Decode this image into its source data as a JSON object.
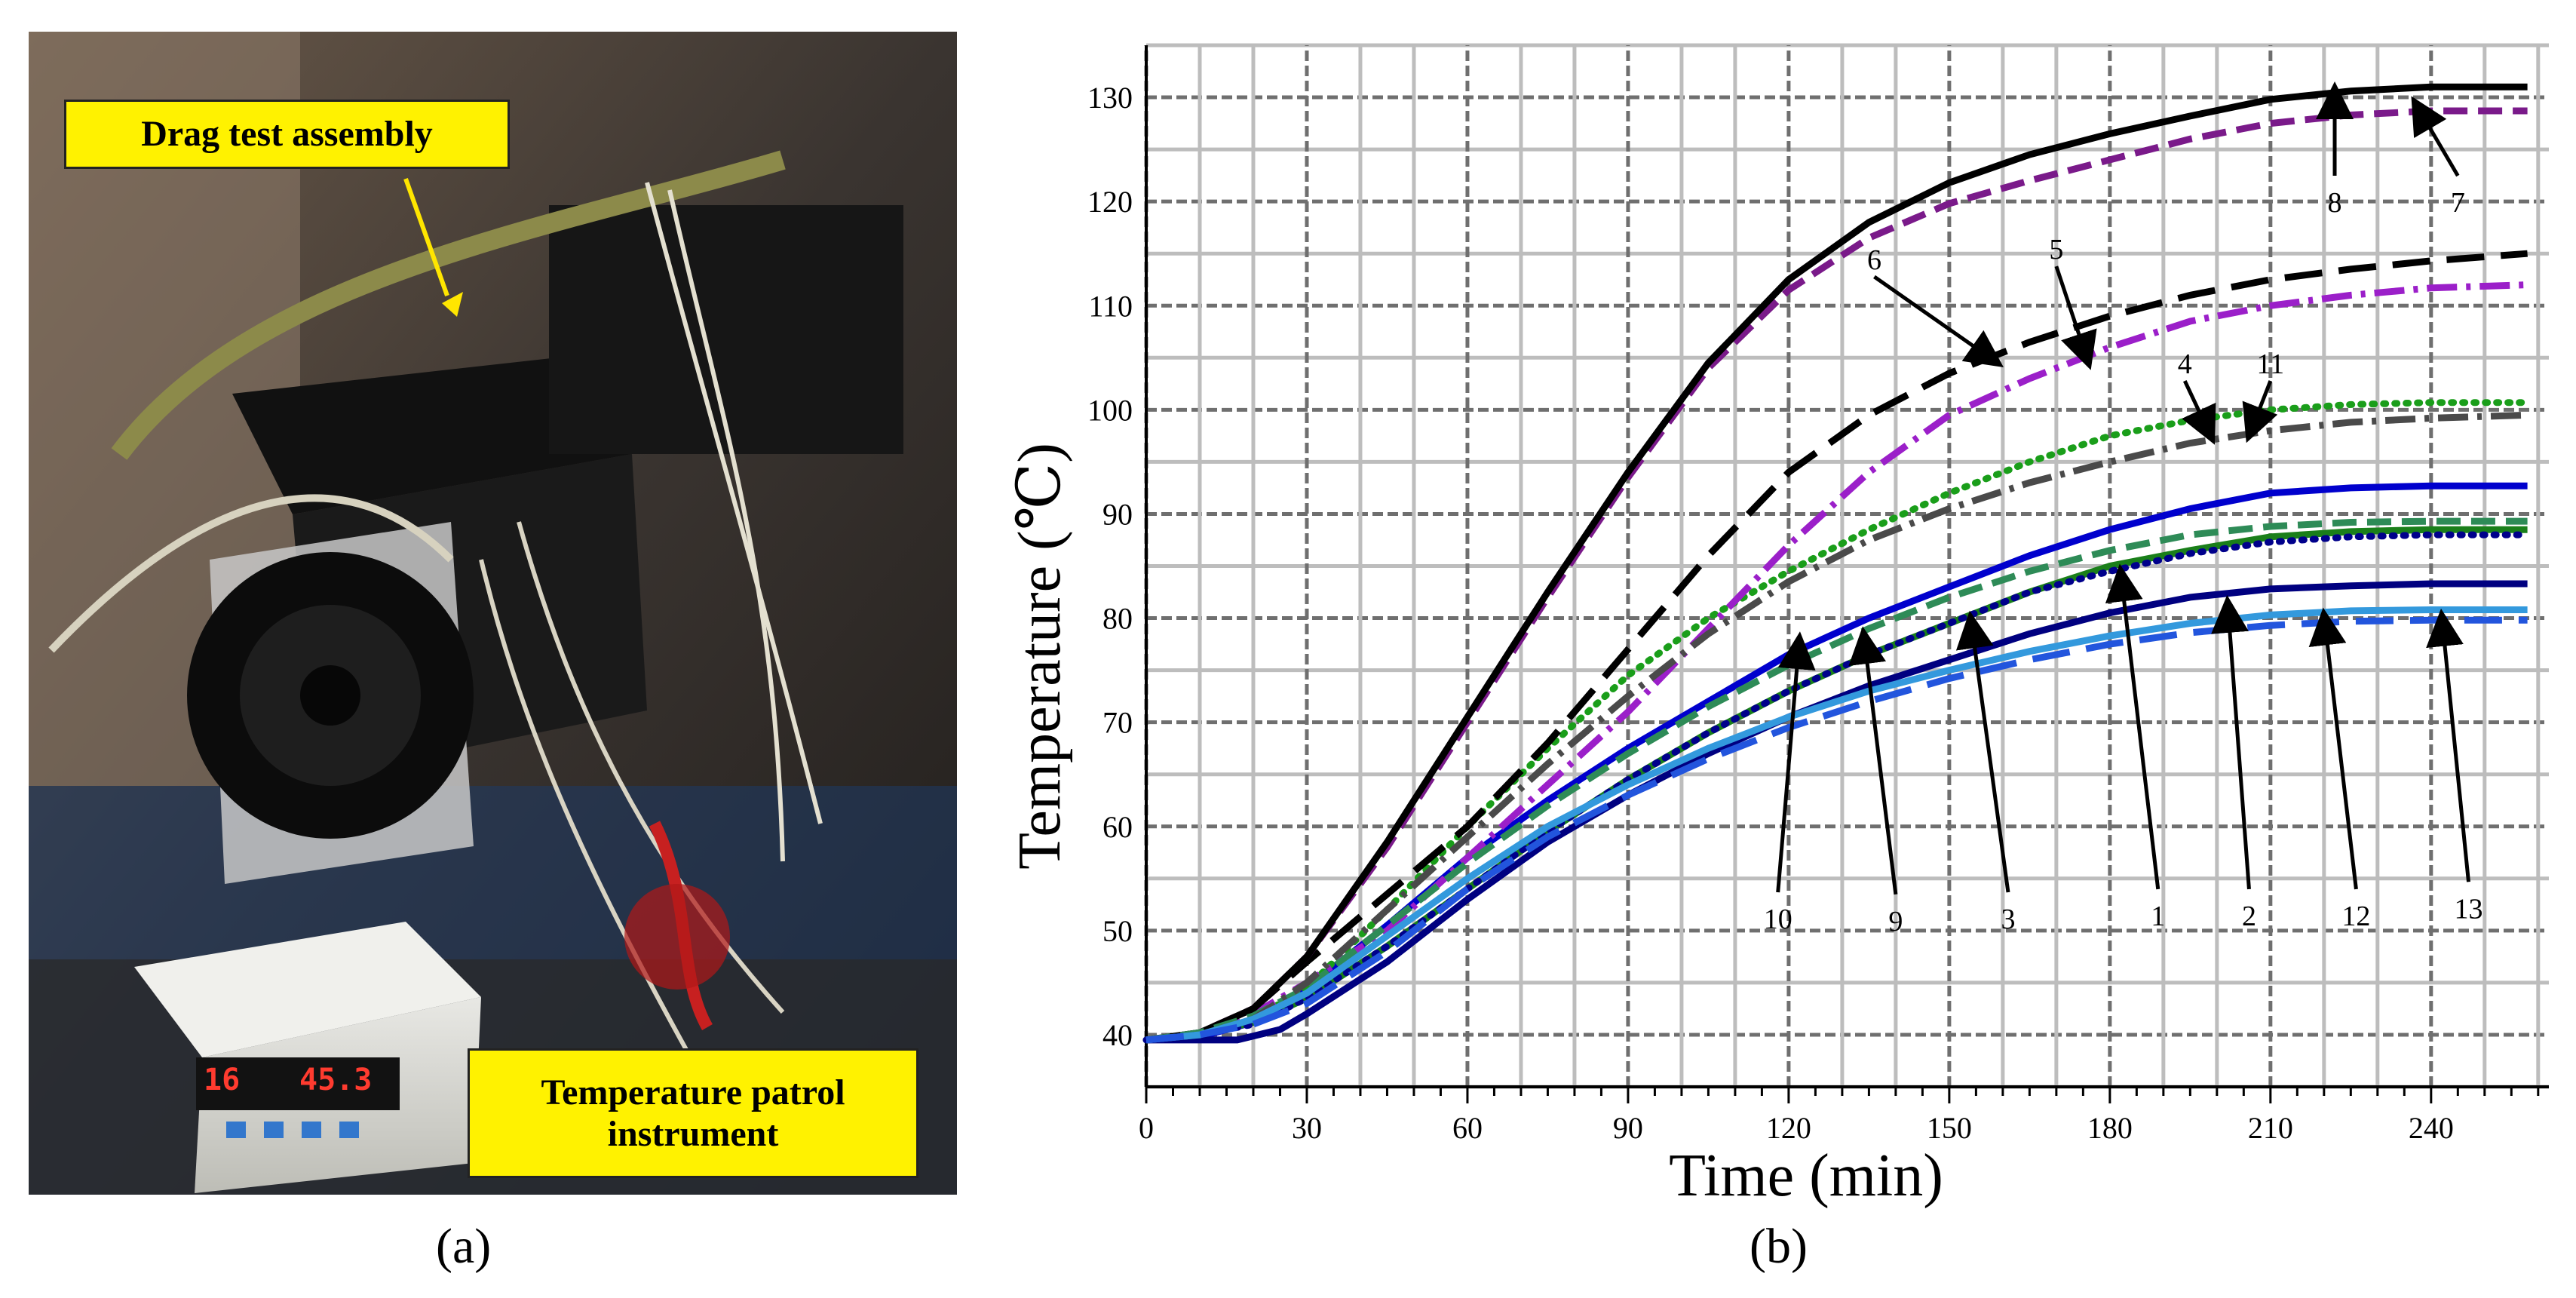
{
  "figure": {
    "panel_a_label": "(a)",
    "panel_b_label": "(b)"
  },
  "photo": {
    "callout_drag": "Drag test assembly",
    "callout_temp": "Temperature patrol instrument",
    "meter_channel": "16",
    "meter_value": "45.3",
    "colors": {
      "callout_fill": "#fff200",
      "arrow": "#ffe600",
      "meter_digits": "#ff3b2f"
    }
  },
  "chart_data": {
    "type": "line",
    "title": "",
    "xlabel": "Time (min)",
    "ylabel": "Temperature (℃)",
    "xlim": [
      0,
      262
    ],
    "ylim": [
      35,
      135
    ],
    "xticks": [
      0,
      30,
      60,
      90,
      120,
      150,
      180,
      210,
      240
    ],
    "yticks": [
      40,
      50,
      60,
      70,
      80,
      90,
      100,
      110,
      120,
      130
    ],
    "grid": true,
    "series": [
      {
        "name": "1",
        "color": "#0000cd",
        "dash": "solid",
        "x": [
          0,
          10,
          20,
          30,
          45,
          60,
          75,
          90,
          105,
          120,
          135,
          150,
          165,
          180,
          195,
          210,
          225,
          240,
          258
        ],
        "y": [
          39.5,
          39.8,
          41.2,
          44.5,
          50.5,
          57,
          62.5,
          67.5,
          72,
          76.5,
          80,
          83,
          86,
          88.5,
          90.5,
          92,
          92.5,
          92.7,
          92.7
        ]
      },
      {
        "name": "2",
        "color": "#000080",
        "dash": "solid",
        "x": [
          0,
          10,
          17,
          25,
          30,
          45,
          60,
          75,
          90,
          105,
          120,
          135,
          150,
          165,
          180,
          195,
          210,
          225,
          240,
          258
        ],
        "y": [
          39.5,
          39.5,
          39.5,
          40.5,
          42,
          47,
          53,
          58.5,
          63,
          67,
          70.5,
          73.5,
          76,
          78.5,
          80.5,
          82,
          82.8,
          83.1,
          83.3,
          83.3
        ]
      },
      {
        "name": "3",
        "color": "#1a7f1a",
        "dash": "solid",
        "x": [
          0,
          10,
          20,
          30,
          45,
          60,
          75,
          90,
          105,
          120,
          135,
          150,
          165,
          180,
          195,
          210,
          225,
          240,
          258
        ],
        "y": [
          39.5,
          40,
          41.2,
          43.5,
          48.5,
          54,
          59.5,
          64.5,
          69,
          73,
          76.5,
          79.5,
          82.5,
          85,
          86.5,
          87.8,
          88.3,
          88.5,
          88.5
        ]
      },
      {
        "name": "4",
        "color": "#1a9e1a",
        "dash": "dotted",
        "x": [
          0,
          10,
          20,
          30,
          45,
          60,
          75,
          90,
          105,
          120,
          135,
          150,
          165,
          180,
          195,
          210,
          225,
          240,
          258
        ],
        "y": [
          39.5,
          40,
          41.5,
          44.5,
          52,
          60,
          67.5,
          74.5,
          80,
          84.5,
          88.5,
          92,
          95,
          97.5,
          99,
          100,
          100.5,
          100.7,
          100.7
        ]
      },
      {
        "name": "5",
        "color": "#9b1fc9",
        "dash": "dashdot",
        "x": [
          0,
          10,
          20,
          30,
          45,
          60,
          75,
          90,
          105,
          120,
          135,
          150,
          165,
          180,
          195,
          210,
          225,
          240,
          258
        ],
        "y": [
          39.5,
          40,
          42,
          45,
          50,
          57,
          64,
          71,
          79,
          87,
          94,
          99.5,
          103,
          106,
          108.5,
          110,
          111,
          111.7,
          112
        ]
      },
      {
        "name": "6",
        "color": "#000000",
        "dash": "longdash",
        "x": [
          0,
          10,
          20,
          30,
          45,
          60,
          75,
          90,
          105,
          120,
          135,
          150,
          165,
          180,
          195,
          210,
          225,
          240,
          258
        ],
        "y": [
          39.5,
          40,
          42.5,
          47,
          53.5,
          60,
          68,
          77,
          86,
          94,
          99.5,
          103.5,
          106.5,
          109,
          111,
          112.5,
          113.5,
          114.3,
          115
        ]
      },
      {
        "name": "7",
        "color": "#7a1a8a",
        "dash": "dash",
        "x": [
          0,
          10,
          20,
          30,
          45,
          60,
          75,
          90,
          105,
          120,
          135,
          150,
          165,
          180,
          195,
          210,
          225,
          240,
          258
        ],
        "y": [
          39.5,
          40.2,
          42.5,
          47.5,
          58,
          70,
          82,
          93.5,
          104,
          111.5,
          116.5,
          119.8,
          122,
          124,
          126,
          127.5,
          128.3,
          128.7,
          128.7
        ]
      },
      {
        "name": "8",
        "color": "#000000",
        "dash": "solid",
        "x": [
          0,
          10,
          20,
          30,
          45,
          60,
          75,
          90,
          105,
          120,
          135,
          150,
          165,
          180,
          195,
          210,
          225,
          240,
          258
        ],
        "y": [
          39.5,
          40.2,
          42.5,
          47.5,
          58.5,
          70.5,
          82.5,
          94,
          104.5,
          112.5,
          118,
          121.8,
          124.5,
          126.5,
          128.2,
          129.8,
          130.6,
          131,
          131
        ]
      },
      {
        "name": "9",
        "color": "#2e8b57",
        "dash": "dash",
        "x": [
          0,
          10,
          20,
          30,
          45,
          60,
          75,
          90,
          105,
          120,
          135,
          150,
          165,
          180,
          195,
          210,
          225,
          240,
          258
        ],
        "y": [
          39.5,
          40.2,
          41.8,
          44.5,
          50.5,
          56.5,
          62,
          67,
          71.5,
          75.5,
          79,
          82,
          84.5,
          86.5,
          88,
          88.8,
          89.2,
          89.3,
          89.3
        ]
      },
      {
        "name": "10",
        "color": "#4a4a4a",
        "dash": "dashdot",
        "x": [
          0,
          10,
          20,
          30,
          45,
          60,
          75,
          90,
          105,
          120,
          135,
          150,
          165,
          180,
          195,
          210,
          225,
          240,
          258
        ],
        "y": [
          39.5,
          40,
          41.5,
          45,
          52,
          59,
          66,
          72.5,
          78.5,
          83.5,
          87.5,
          90.5,
          93,
          95,
          96.8,
          98,
          98.8,
          99.2,
          99.5
        ]
      },
      {
        "name": "11",
        "color": "#00008b",
        "dash": "dotted",
        "x": [
          0,
          10,
          20,
          30,
          45,
          60,
          75,
          90,
          105,
          120,
          135,
          150,
          165,
          180,
          195,
          210,
          225,
          240,
          258
        ],
        "y": [
          39.5,
          40,
          41,
          43.5,
          48.5,
          54,
          59.5,
          64.5,
          69,
          73,
          76.5,
          79.5,
          82.5,
          84.5,
          86.2,
          87.3,
          87.8,
          88,
          88
        ]
      },
      {
        "name": "12",
        "color": "#3399dd",
        "dash": "solid",
        "x": [
          0,
          10,
          20,
          30,
          45,
          60,
          75,
          90,
          105,
          120,
          135,
          150,
          165,
          180,
          195,
          210,
          225,
          240,
          258
        ],
        "y": [
          39.5,
          40,
          41.5,
          44,
          49.5,
          55,
          60,
          64,
          67.5,
          70.5,
          73,
          75,
          76.8,
          78.3,
          79.5,
          80.3,
          80.7,
          80.8,
          80.8
        ]
      },
      {
        "name": "13",
        "color": "#2255dd",
        "dash": "longdash",
        "x": [
          0,
          10,
          20,
          30,
          45,
          60,
          75,
          90,
          105,
          120,
          135,
          150,
          165,
          180,
          195,
          210,
          225,
          240,
          258
        ],
        "y": [
          39.5,
          40,
          41,
          43,
          48,
          54,
          59,
          63,
          66.5,
          69.5,
          72,
          74.2,
          76,
          77.5,
          78.6,
          79.3,
          79.7,
          79.8,
          79.8
        ]
      }
    ],
    "annotations": [
      {
        "label": "1",
        "label_at": [
          189,
          50.5
        ],
        "arrow_to": [
          182,
          84.5
        ]
      },
      {
        "label": "2",
        "label_at": [
          206,
          50.5
        ],
        "arrow_to": [
          202,
          81.5
        ]
      },
      {
        "label": "3",
        "label_at": [
          161,
          50.2
        ],
        "arrow_to": [
          154,
          80
        ]
      },
      {
        "label": "4",
        "label_at": [
          194,
          103.5
        ],
        "arrow_to": [
          199,
          97.3
        ]
      },
      {
        "label": "5",
        "label_at": [
          170,
          114.5
        ],
        "arrow_to": [
          176,
          104.5
        ]
      },
      {
        "label": "6",
        "label_at": [
          136,
          113.5
        ],
        "arrow_to": [
          159,
          104.5
        ]
      },
      {
        "label": "7",
        "label_at": [
          245,
          119
        ],
        "arrow_to": [
          237,
          129.5
        ]
      },
      {
        "label": "8",
        "label_at": [
          222,
          119
        ],
        "arrow_to": [
          222,
          130.8
        ]
      },
      {
        "label": "9",
        "label_at": [
          140,
          50
        ],
        "arrow_to": [
          134,
          78.5
        ]
      },
      {
        "label": "10",
        "label_at": [
          118,
          50.2
        ],
        "arrow_to": [
          122,
          78
        ]
      },
      {
        "label": "11",
        "label_at": [
          210,
          103.5
        ],
        "arrow_to": [
          206,
          97.5
        ]
      },
      {
        "label": "12",
        "label_at": [
          226,
          50.5
        ],
        "arrow_to": [
          220,
          80.3
        ]
      },
      {
        "label": "13",
        "label_at": [
          247,
          51.2
        ],
        "arrow_to": [
          242,
          80.2
        ]
      }
    ]
  }
}
